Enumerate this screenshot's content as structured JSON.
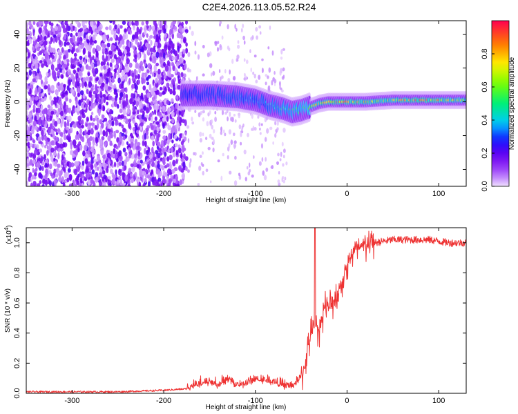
{
  "title": "C2E4.2026.113.05.52.R24",
  "chart_data": [
    {
      "type": "heatmap",
      "xlabel": "Height of straight line (km)",
      "ylabel": "Frequency (Hz)",
      "xlim": [
        -350,
        130
      ],
      "ylim": [
        -50,
        48
      ],
      "xticks": [
        -300,
        -200,
        -100,
        0,
        100
      ],
      "yticks": [
        -40,
        -20,
        0,
        20,
        40
      ],
      "colorbar": {
        "label": "Normalized spectral amplitude",
        "range": [
          0,
          1
        ],
        "ticks": [
          "0.0",
          "0.2",
          "0.4",
          "0.6",
          "0.8"
        ],
        "tick_values": [
          0.0,
          0.2,
          0.4,
          0.6,
          0.8
        ]
      },
      "ridge": {
        "description_points_x": [
          -175,
          -150,
          -120,
          -100,
          -85,
          -70,
          -60,
          -50,
          -40,
          -30,
          -20,
          0,
          20,
          50,
          80,
          100,
          130
        ],
        "description_points_freq": [
          4,
          4,
          3,
          1,
          -2,
          -4,
          -6,
          -5,
          -3,
          -1,
          0,
          0,
          0,
          1,
          1,
          1,
          1
        ],
        "amplitude": [
          0.25,
          0.3,
          0.35,
          0.35,
          0.4,
          0.5,
          0.55,
          0.6,
          0.7,
          0.8,
          0.85,
          0.9,
          0.85,
          0.8,
          0.95,
          0.85,
          0.75
        ]
      }
    },
    {
      "type": "line",
      "xlabel": "Height of straight line (km)",
      "ylabel": "SNR (10 * v/v)",
      "y_multiplier": "(x10⁴)",
      "y_multiplier_base": "(x10",
      "y_multiplier_exp": "4",
      "xlim": [
        -350,
        130
      ],
      "ylim": [
        0,
        1.1
      ],
      "xticks": [
        -300,
        -200,
        -100,
        0,
        100
      ],
      "yticks": [
        "0.0",
        "0.2",
        "0.4",
        "0.6",
        "0.8",
        "1.0"
      ],
      "ytick_values": [
        0.0,
        0.2,
        0.4,
        0.6,
        0.8,
        1.0
      ],
      "series": [
        {
          "name": "SNR",
          "color": "#ee3333",
          "x": [
            -350,
            -250,
            -200,
            -175,
            -160,
            -150,
            -140,
            -130,
            -120,
            -110,
            -100,
            -90,
            -80,
            -70,
            -60,
            -50,
            -45,
            -40,
            -35,
            -30,
            -25,
            -20,
            -15,
            -10,
            -5,
            0,
            5,
            10,
            20,
            30,
            40,
            50,
            70,
            90,
            100,
            110,
            130
          ],
          "y": [
            0.01,
            0.01,
            0.02,
            0.03,
            0.06,
            0.07,
            0.05,
            0.09,
            0.05,
            0.06,
            0.09,
            0.08,
            0.07,
            0.05,
            0.04,
            0.1,
            0.22,
            0.38,
            0.45,
            0.42,
            0.58,
            0.56,
            0.62,
            0.66,
            0.75,
            0.85,
            0.92,
            0.95,
            0.98,
            1.0,
            1.01,
            1.02,
            1.02,
            1.02,
            1.01,
            1.0,
            1.0
          ]
        }
      ],
      "spike": {
        "x": -35,
        "y": 1.1
      }
    }
  ]
}
